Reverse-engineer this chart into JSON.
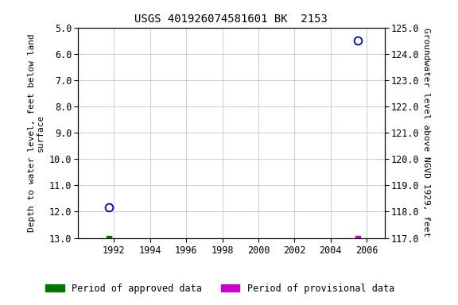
{
  "title": "USGS 401926074581601 BK  2153",
  "ylabel_left": "Depth to water level, feet below land\nsurface",
  "ylabel_right": "Groundwater level above NGVD 1929, feet",
  "xlim": [
    1990.0,
    2007.0
  ],
  "ylim_left": [
    5.0,
    13.0
  ],
  "ylim_right": [
    117.0,
    125.0
  ],
  "xticks": [
    1992,
    1994,
    1996,
    1998,
    2000,
    2002,
    2004,
    2006
  ],
  "yticks_left": [
    5.0,
    6.0,
    7.0,
    8.0,
    9.0,
    10.0,
    11.0,
    12.0,
    13.0
  ],
  "yticks_right": [
    117.0,
    118.0,
    119.0,
    120.0,
    121.0,
    122.0,
    123.0,
    124.0,
    125.0
  ],
  "blue_points_x": [
    1991.7,
    2005.5
  ],
  "blue_points_y": [
    11.85,
    5.5
  ],
  "green_point_x": [
    1991.7
  ],
  "green_point_y": [
    13.0
  ],
  "magenta_point_x": [
    2005.5
  ],
  "magenta_point_y": [
    13.0
  ],
  "background_color": "#ffffff",
  "grid_color": "#cccccc",
  "title_fontsize": 10,
  "axis_label_fontsize": 8,
  "tick_fontsize": 8.5,
  "legend_fontsize": 8.5,
  "blue_color": "#0000bb",
  "green_color": "#007700",
  "magenta_color": "#cc00cc"
}
